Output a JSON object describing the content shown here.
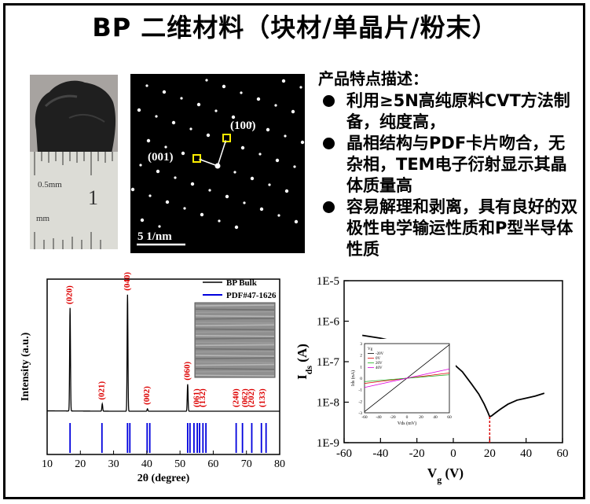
{
  "title": "BP 二维材料（块材/单晶片/粉末）",
  "photo": {
    "ruler_text": "0.5mm",
    "ruler_number": "1",
    "ruler_unit": "mm"
  },
  "tem": {
    "label_100": "(100)",
    "label_001": "(001)",
    "scale_bar": "5 1/nm"
  },
  "features": {
    "heading": "产品特点描述：",
    "items": [
      "利用≥5N高纯原料CVT方法制备，纯度高，",
      "晶相结构与PDF卡片吻合，无杂相，TEM电子衍射显示其晶体质量高",
      "容易解理和剥离，具有良好的双极性电学输运性质和P型半导体性质"
    ]
  },
  "xrd_chart": {
    "type": "line",
    "xlabel": "2θ (degree)",
    "ylabel": "Intensity (a.u.)",
    "xlim": [
      10,
      80
    ],
    "x_ticks": [
      10,
      20,
      30,
      40,
      50,
      60,
      70,
      80
    ],
    "legend": [
      "BP Bulk",
      "PDF#47-1626"
    ],
    "colors": {
      "bulk": "#000000",
      "pdf": "#0000dd",
      "label": "#dd0000"
    },
    "peaks": [
      {
        "x": 16.9,
        "h": 0.84,
        "label": "(020)"
      },
      {
        "x": 26.6,
        "h": 0.06,
        "label": "(021)"
      },
      {
        "x": 34.2,
        "h": 0.95,
        "label": "(040)"
      },
      {
        "x": 40.2,
        "h": 0.02,
        "label": "(002)"
      },
      {
        "x": 52.3,
        "h": 0.22,
        "label": "(060)"
      },
      {
        "x": 55.2,
        "h": 0.0,
        "label": "(061)"
      },
      {
        "x": 56.9,
        "h": 0.0,
        "label": "(132)"
      },
      {
        "x": 67.0,
        "h": 0.0,
        "label": "(240)"
      },
      {
        "x": 69.7,
        "h": 0.0,
        "label": "(062)"
      },
      {
        "x": 71.6,
        "h": 0.0,
        "label": "(202)"
      },
      {
        "x": 74.9,
        "h": 0.0,
        "label": "(133)"
      }
    ],
    "pdf_lines": [
      16.9,
      26.5,
      34.2,
      34.9,
      40.1,
      40.9,
      52.3,
      53.0,
      54.2,
      55.2,
      55.9,
      56.9,
      57.8,
      66.9,
      68.8,
      71.6,
      74.5,
      75.9
    ]
  },
  "iv_chart": {
    "type": "line",
    "xlabel": "V",
    "xlabel_sub": "g",
    "xlabel_unit": " (V)",
    "ylabel": "I",
    "ylabel_sub": "ds",
    "ylabel_unit": " (A)",
    "xlim": [
      -60,
      60
    ],
    "x_ticks": [
      -60,
      -40,
      -20,
      0,
      20,
      40,
      60
    ],
    "y_ticks": [
      "1E-9",
      "1E-8",
      "1E-7",
      "1E-6",
      "1E-5"
    ],
    "y_log_range": [
      -9,
      -5
    ],
    "series": [
      {
        "x": [
          -50,
          -40,
          -30,
          -20,
          -10,
          0,
          5,
          10,
          14,
          17,
          19,
          20,
          21,
          23,
          26,
          30,
          35,
          40,
          45,
          50
        ],
        "y": [
          -6.35,
          -6.42,
          -6.52,
          -6.64,
          -6.8,
          -7.05,
          -7.25,
          -7.55,
          -7.8,
          -8.05,
          -8.25,
          -8.36,
          -8.34,
          -8.27,
          -8.17,
          -8.05,
          -7.95,
          -7.9,
          -7.85,
          -7.78
        ]
      }
    ],
    "minimum_vg": 20,
    "colors": {
      "curve": "#000000",
      "marker": "#dd0000"
    },
    "inset": {
      "legend_title": "Vg",
      "legend": [
        "-20V",
        "0V",
        "20V",
        "40V"
      ],
      "legend_colors": [
        "#000000",
        "#dd0000",
        "#1fae1f",
        "#dd00dd"
      ],
      "xlabel": "Vds (mV)",
      "ylabel": "Ids (nA)",
      "x_ticks": [
        -60,
        -40,
        -20,
        0,
        20,
        40,
        60
      ],
      "y_ticks": [
        3,
        2,
        1,
        0,
        -1,
        -2,
        -3
      ]
    }
  }
}
